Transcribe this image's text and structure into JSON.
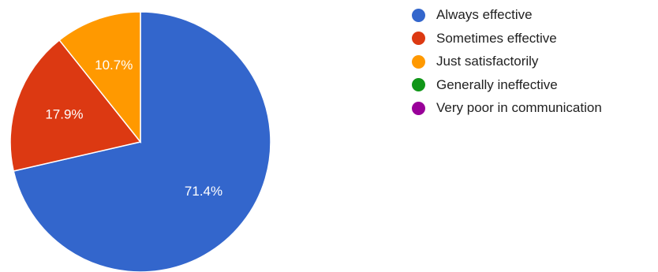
{
  "chart_data": {
    "type": "pie",
    "title": "",
    "slices": [
      {
        "label": "Always effective",
        "value": 71.4,
        "display": "71.4%",
        "color": "#3366cc"
      },
      {
        "label": "Sometimes effective",
        "value": 17.9,
        "display": "17.9%",
        "color": "#dc3912"
      },
      {
        "label": "Just satisfactorily",
        "value": 10.7,
        "display": "10.7%",
        "color": "#ff9900"
      },
      {
        "label": "Generally ineffective",
        "value": 0,
        "display": "",
        "color": "#109618"
      },
      {
        "label": "Very poor in communication",
        "value": 0,
        "display": "",
        "color": "#990099"
      }
    ],
    "legend_position": "right"
  }
}
